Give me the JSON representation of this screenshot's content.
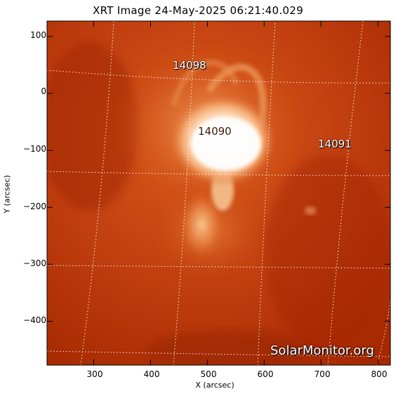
{
  "title": "XRT Image 24-May-2025 06:21:40.029",
  "axes": {
    "xlabel": "X (arcsec)",
    "ylabel": "Y (arcsec)",
    "xticks": [
      "300",
      "400",
      "500",
      "600",
      "700",
      "800"
    ],
    "yticks": [
      "100",
      "0",
      "−100",
      "−200",
      "−300",
      "−400"
    ],
    "xlim": [
      218,
      822
    ],
    "ylim": [
      -477,
      127
    ]
  },
  "regions": [
    {
      "label": "14098"
    },
    {
      "label": "14090"
    },
    {
      "label": "14091"
    }
  ],
  "watermark": "SolarMonitor.org",
  "colors": {
    "disk_dark": "#9a2000",
    "disk_mid": "#cc4a12",
    "bright": "#fff6e8"
  }
}
